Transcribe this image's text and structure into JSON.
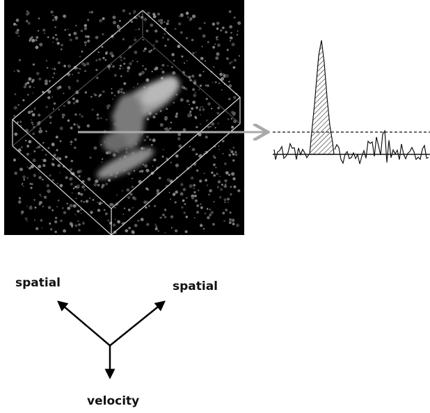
{
  "axes": {
    "spatial_left": "spatial",
    "spatial_right": "spatial",
    "velocity": "velocity"
  }
}
